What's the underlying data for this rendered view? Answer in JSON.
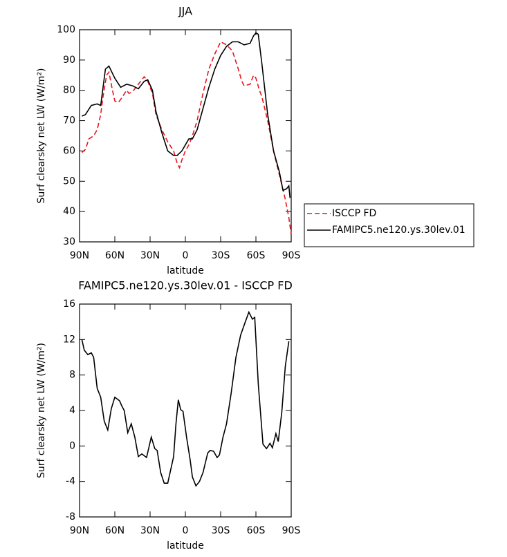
{
  "chart_data": [
    {
      "type": "line",
      "title": "JJA",
      "xlabel": "latitude",
      "ylabel": "Surf clearsky net LW (W/m²)",
      "xlim": [
        90,
        -90
      ],
      "ylim": [
        30,
        100
      ],
      "xticks": [
        {
          "value": 90,
          "label": "90N"
        },
        {
          "value": 60,
          "label": "60N"
        },
        {
          "value": 30,
          "label": "30N"
        },
        0,
        {
          "value": -30,
          "label": "30S"
        },
        {
          "value": -60,
          "label": "60S"
        },
        {
          "value": -90,
          "label": "90S"
        }
      ],
      "yticks": [
        30,
        40,
        50,
        60,
        70,
        80,
        90,
        100
      ],
      "legend": "outside-right",
      "series": [
        {
          "name": "ISCCP FD",
          "color": "#e8141e",
          "style": "dashed",
          "x": [
            88,
            85,
            82,
            78,
            75,
            72,
            70,
            67,
            65,
            62,
            60,
            57,
            55,
            50,
            48,
            45,
            40,
            35,
            32,
            28,
            25,
            20,
            15,
            10,
            7,
            5,
            3,
            0,
            -3,
            -6,
            -10,
            -15,
            -20,
            -25,
            -30,
            -35,
            -40,
            -45,
            -48,
            -50,
            -55,
            -58,
            -60,
            -63,
            -65,
            -70,
            -75,
            -80,
            -85,
            -88,
            -90
          ],
          "values": [
            59.5,
            60.5,
            64,
            65,
            67,
            72,
            78,
            85,
            86,
            80,
            76.5,
            76,
            77,
            80,
            79,
            79.5,
            82,
            84.5,
            83,
            79,
            72,
            67,
            63,
            60,
            56,
            54.5,
            57,
            60,
            62,
            65,
            70,
            79,
            87,
            92,
            96,
            95,
            93,
            87,
            83,
            81.5,
            82,
            85,
            84,
            80,
            78,
            70,
            60,
            52,
            44,
            38,
            32.5
          ]
        },
        {
          "name": "FAMIPC5.ne120.ys.30lev.01",
          "color": "#000000",
          "style": "solid",
          "x": [
            88,
            85,
            80,
            75,
            72,
            68,
            65,
            60,
            55,
            50,
            45,
            40,
            35,
            32,
            28,
            25,
            20,
            15,
            10,
            7,
            3,
            0,
            -3,
            -6,
            -10,
            -15,
            -20,
            -25,
            -30,
            -35,
            -40,
            -45,
            -50,
            -55,
            -58,
            -60,
            -62,
            -65,
            -70,
            -75,
            -80,
            -83,
            -86,
            -88,
            -89
          ],
          "values": [
            71.5,
            72,
            75,
            75.5,
            75,
            87,
            88,
            84,
            81,
            82,
            81.5,
            80.5,
            83,
            83.5,
            80,
            73,
            66,
            60,
            58.5,
            58.5,
            60,
            62,
            64,
            64,
            67,
            74,
            81,
            87,
            91.5,
            94.5,
            96,
            96,
            95,
            95.5,
            98,
            99,
            98.5,
            89,
            72,
            60,
            53,
            47,
            47.5,
            48.5,
            44.5
          ]
        }
      ]
    },
    {
      "type": "line",
      "title": "FAMIPC5.ne120.ys.30lev.01 - ISCCP FD",
      "xlabel": "latitude",
      "ylabel": "Surf clearsky net LW (W/m²)",
      "xlim": [
        90,
        -90
      ],
      "ylim": [
        -8,
        16
      ],
      "xticks": [
        {
          "value": 90,
          "label": "90N"
        },
        {
          "value": 60,
          "label": "60N"
        },
        {
          "value": 30,
          "label": "30N"
        },
        0,
        {
          "value": -30,
          "label": "30S"
        },
        {
          "value": -60,
          "label": "60S"
        },
        {
          "value": -90,
          "label": "90S"
        }
      ],
      "yticks": [
        -8,
        -4,
        0,
        4,
        8,
        12,
        16
      ],
      "series": [
        {
          "color": "#000000",
          "style": "solid",
          "x": [
            88,
            86,
            83,
            80,
            78,
            75,
            72,
            69,
            66,
            63,
            60,
            56,
            54,
            52,
            49,
            46,
            43,
            40,
            37,
            33,
            29,
            26,
            24,
            21,
            18,
            15,
            13,
            10,
            8,
            6,
            4,
            2,
            -1,
            -4,
            -6,
            -9,
            -12,
            -15,
            -19,
            -21,
            -24,
            -27,
            -29,
            -32,
            -35,
            -39,
            -43,
            -47,
            -51,
            -54,
            -57,
            -59,
            -62,
            -66,
            -69,
            -72,
            -74,
            -77,
            -79,
            -82,
            -85,
            -88
          ],
          "values": [
            12,
            10.8,
            10.3,
            10.5,
            10,
            6.5,
            5.5,
            2.8,
            1.8,
            4.2,
            5.5,
            5.1,
            4.5,
            4,
            1.5,
            2.5,
            1,
            -1.2,
            -0.9,
            -1.3,
            1,
            -0.3,
            -0.5,
            -3,
            -4.2,
            -4.2,
            -3,
            -1.2,
            2.5,
            5.2,
            4.1,
            3.9,
            1,
            -1.5,
            -3.5,
            -4.5,
            -4,
            -3,
            -0.8,
            -0.5,
            -0.6,
            -1.3,
            -1,
            1,
            2.5,
            6,
            10,
            12.5,
            14,
            15.1,
            14.3,
            14.5,
            7,
            0.2,
            -0.3,
            0.3,
            -0.2,
            1.4,
            0.5,
            3.8,
            9,
            11.8
          ]
        }
      ]
    }
  ]
}
